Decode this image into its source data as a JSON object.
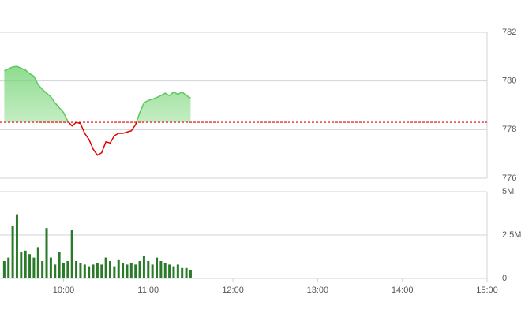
{
  "chart_data": [
    {
      "type": "line",
      "x": [
        558,
        561,
        564,
        567,
        570,
        573,
        576,
        579,
        582,
        585,
        588,
        591,
        594,
        597,
        600,
        603,
        606,
        609,
        612,
        615,
        618,
        621,
        624,
        627,
        630,
        633,
        636,
        639,
        642,
        645,
        648,
        651,
        654,
        657,
        660,
        663,
        666,
        669,
        672,
        675,
        678,
        681,
        684,
        687,
        690
      ],
      "values": [
        780.42,
        780.5,
        780.58,
        780.6,
        780.52,
        780.45,
        780.3,
        780.2,
        779.85,
        779.65,
        779.5,
        779.35,
        779.1,
        778.9,
        778.7,
        778.35,
        778.15,
        778.3,
        778.25,
        777.85,
        777.6,
        777.2,
        776.95,
        777.05,
        777.5,
        777.45,
        777.75,
        777.85,
        777.85,
        777.9,
        777.95,
        778.2,
        778.7,
        779.1,
        779.2,
        779.25,
        779.32,
        779.4,
        779.5,
        779.4,
        779.55,
        779.45,
        779.55,
        779.4,
        779.3
      ],
      "reference": 778.3,
      "color_up": "#5cc85c",
      "color_down": "#e00000",
      "xlim": [
        555,
        900
      ],
      "ylim": [
        776,
        782
      ],
      "yticks": [
        776,
        778,
        780,
        782
      ]
    },
    {
      "type": "bar",
      "x": [
        558,
        561,
        564,
        567,
        570,
        573,
        576,
        579,
        582,
        585,
        588,
        591,
        594,
        597,
        600,
        603,
        606,
        609,
        612,
        615,
        618,
        621,
        624,
        627,
        630,
        633,
        636,
        639,
        642,
        645,
        648,
        651,
        654,
        657,
        660,
        663,
        666,
        669,
        672,
        675,
        678,
        681,
        684,
        687,
        690
      ],
      "values": [
        1.0,
        1.2,
        3.0,
        3.7,
        1.5,
        1.6,
        1.4,
        1.2,
        1.8,
        1.0,
        2.9,
        1.2,
        0.8,
        1.5,
        0.9,
        1.0,
        2.8,
        1.0,
        0.9,
        0.8,
        0.7,
        0.8,
        0.9,
        0.8,
        1.2,
        1.0,
        0.7,
        1.1,
        0.9,
        0.8,
        0.9,
        0.8,
        1.0,
        1.3,
        1.0,
        0.8,
        1.2,
        1.0,
        0.9,
        0.8,
        0.7,
        0.8,
        0.6,
        0.6,
        0.5
      ],
      "color": "#2a7a2a",
      "xlim": [
        555,
        900
      ],
      "ylim": [
        0,
        5
      ],
      "yticks": [
        0,
        {
          "value": 2.5,
          "label": "2.5M"
        },
        {
          "value": 5,
          "label": "5M"
        }
      ],
      "xticks": [
        {
          "value": 600,
          "label": "10:00"
        },
        {
          "value": 660,
          "label": "11:00"
        },
        {
          "value": 720,
          "label": "12:00"
        },
        {
          "value": 780,
          "label": "13:00"
        },
        {
          "value": 840,
          "label": "14:00"
        },
        {
          "value": 900,
          "label": "15:00"
        }
      ]
    }
  ]
}
